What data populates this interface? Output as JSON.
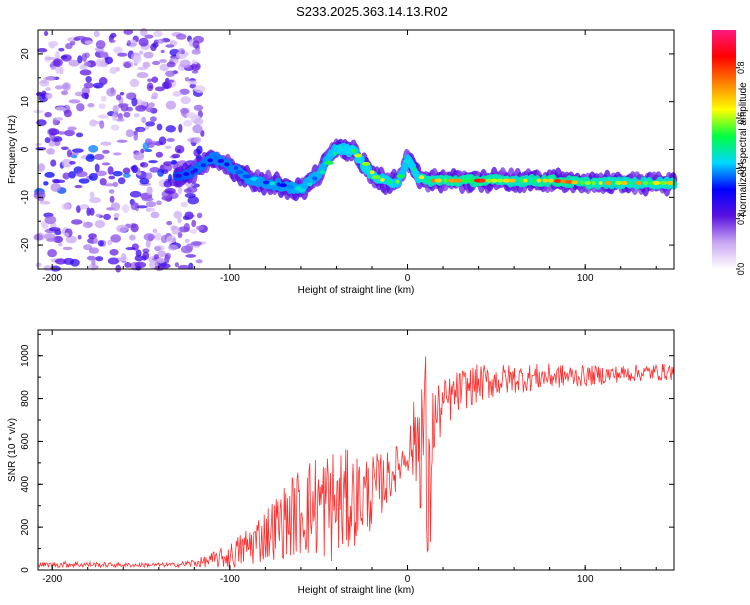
{
  "title": "S233.2025.363.14.13.R02",
  "chart_data": [
    {
      "type": "heatmap",
      "xlabel": "Height of straight line (km)",
      "ylabel": "Frequency (Hz)",
      "xlim": [
        -208,
        150
      ],
      "ylim": [
        -25,
        25
      ],
      "xticks": [
        -200,
        -100,
        0,
        100
      ],
      "yticks": [
        -20,
        -10,
        0,
        10,
        20
      ],
      "colorbar": {
        "label": "Normalized spectral amplitude",
        "range": [
          0,
          0.95
        ],
        "ticks": [
          0.0,
          0.2,
          0.4,
          0.6,
          0.8
        ],
        "tick_labels": [
          "0.0",
          "0.2",
          "0.4",
          "0.6",
          "0.8"
        ],
        "colormap": [
          "#ffffff",
          "#c9a6f2",
          "#5a10e0",
          "#0000ff",
          "#00d8ff",
          "#00ff40",
          "#ffff00",
          "#ff8000",
          "#ff0000",
          "#ff1a80"
        ]
      },
      "signal_track": {
        "x": [
          -130,
          -120,
          -110,
          -100,
          -90,
          -80,
          -70,
          -60,
          -50,
          -40,
          -30,
          -20,
          -10,
          -5,
          0,
          5,
          10,
          20,
          40,
          60,
          80,
          100,
          120,
          150
        ],
        "freq": [
          -5.5,
          -4.5,
          -1.5,
          -3.5,
          -6,
          -7,
          -7.5,
          -8.5,
          -5,
          0.5,
          -0.5,
          -5.5,
          -7,
          -6.5,
          -2,
          -5.5,
          -6.5,
          -6.5,
          -6.5,
          -6.5,
          -6.5,
          -7,
          -7,
          -7
        ],
        "amplitude": [
          0.3,
          0.35,
          0.4,
          0.4,
          0.45,
          0.45,
          0.45,
          0.5,
          0.5,
          0.55,
          0.6,
          0.65,
          0.6,
          0.55,
          0.55,
          0.6,
          0.7,
          0.75,
          0.8,
          0.7,
          0.8,
          0.75,
          0.7,
          0.7
        ]
      },
      "noise_region": {
        "x_range": [
          -208,
          -115
        ],
        "freq_range": [
          -25,
          25
        ],
        "amplitude": 0.2
      }
    },
    {
      "type": "line",
      "xlabel": "Height of straight line (km)",
      "ylabel": "SNR (10 * v/v)",
      "xlim": [
        -208,
        150
      ],
      "ylim": [
        0,
        1120
      ],
      "xticks": [
        -200,
        -100,
        0,
        100
      ],
      "yticks": [
        0,
        200,
        400,
        600,
        800,
        1000
      ],
      "series": [
        {
          "name": "SNR",
          "color": "#ff3030",
          "x": [
            -208,
            -190,
            -160,
            -130,
            -115,
            -100,
            -90,
            -80,
            -70,
            -60,
            -50,
            -40,
            -30,
            -20,
            -10,
            0,
            5,
            8,
            10,
            12,
            14,
            20,
            30,
            40,
            50,
            60,
            80,
            100,
            120,
            150
          ],
          "envelope": [
            25,
            28,
            24,
            25,
            40,
            70,
            120,
            180,
            240,
            300,
            330,
            330,
            350,
            380,
            450,
            550,
            640,
            700,
            650,
            200,
            700,
            780,
            850,
            880,
            890,
            900,
            910,
            910,
            920,
            930
          ],
          "amplitude": [
            12,
            15,
            10,
            10,
            25,
            60,
            100,
            130,
            170,
            220,
            260,
            280,
            220,
            180,
            120,
            80,
            250,
            420,
            520,
            500,
            200,
            120,
            100,
            90,
            80,
            70,
            60,
            50,
            40,
            40
          ]
        }
      ]
    }
  ]
}
